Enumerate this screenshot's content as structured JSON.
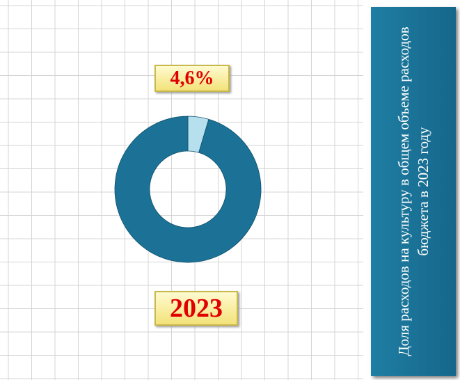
{
  "chart_data": {
    "type": "donut",
    "title": "Доля расходов на культуру в общем объеме расходов бюджета в 2023 году",
    "year_label": "2023",
    "values": [
      4.6,
      95.4
    ],
    "value_labels": [
      "4,6%",
      null
    ],
    "colors": [
      "#b6e0ee",
      "#1b7296"
    ]
  }
}
